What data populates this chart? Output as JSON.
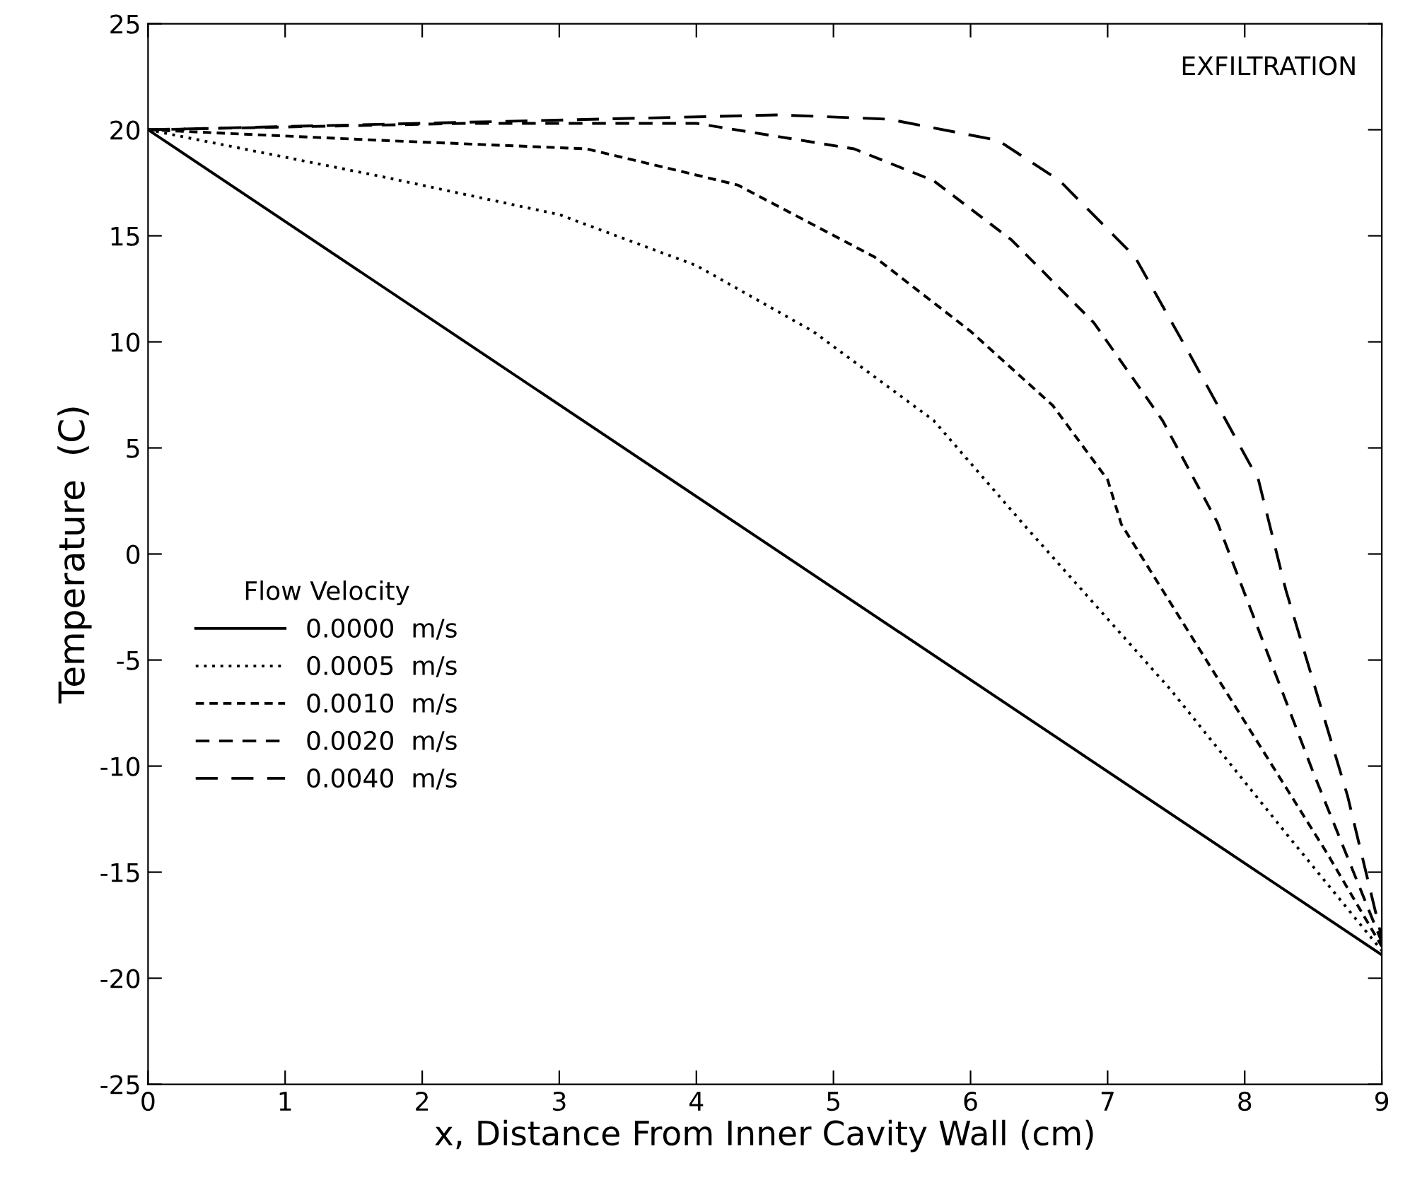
{
  "chart_data": {
    "type": "line",
    "xlabel": "x, Distance From Inner Cavity Wall (cm)",
    "ylabel": "Temperature  (C)",
    "legend_title": "Flow Velocity",
    "legend": "center left",
    "grid": false,
    "marker": "none",
    "annotations": [
      "EXFILTRATION"
    ],
    "xlim": [
      0,
      9
    ],
    "xticks": [
      0,
      1,
      2,
      3,
      4,
      5,
      6,
      7,
      8,
      9
    ],
    "ylim": [
      -25,
      25
    ],
    "yticks": [
      -25,
      -20,
      -15,
      -10,
      -5,
      0,
      5,
      10,
      15,
      20,
      25
    ],
    "series": [
      {
        "name": "0.0000  m/s",
        "color": "#000000",
        "line_style": "solid",
        "x": [
          0,
          9
        ],
        "values": [
          20,
          -18.9
        ]
      },
      {
        "name": "0.0005  m/s",
        "color": "#000000",
        "line_style": "dotted",
        "x": [
          0,
          1.7,
          3.0,
          4.0,
          4.85,
          5.73,
          6.4,
          7.46,
          8.33,
          9
        ],
        "values": [
          20,
          17.8,
          16.0,
          13.6,
          10.5,
          6.3,
          1.3,
          -6.4,
          -13.4,
          -18.7
        ]
      },
      {
        "name": "0.0010  m/s",
        "color": "#000000",
        "line_style": "dashed",
        "x": [
          0,
          1.7,
          3.2,
          4.3,
          5.3,
          6.0,
          6.6,
          7.0,
          7.1,
          8.6,
          9
        ],
        "values": [
          20,
          19.5,
          19.1,
          17.4,
          14.0,
          10.5,
          7.0,
          3.5,
          1.4,
          -14.1,
          -18.5
        ]
      },
      {
        "name": "0.0020  m/s",
        "color": "#000000",
        "line_style": "dashed",
        "x": [
          0,
          2.3,
          4.0,
          5.15,
          5.73,
          6.3,
          6.9,
          7.4,
          7.8,
          8.5,
          9
        ],
        "values": [
          20,
          20.3,
          20.3,
          19.1,
          17.6,
          14.8,
          10.9,
          6.3,
          1.5,
          -10.3,
          -18.3
        ]
      },
      {
        "name": "0.0040  m/s",
        "color": "#000000",
        "line_style": "dashed",
        "x": [
          0,
          4.6,
          5.4,
          6.2,
          6.65,
          7.2,
          7.6,
          8.1,
          8.3,
          8.75,
          9
        ],
        "values": [
          20,
          20.7,
          20.5,
          19.5,
          17.6,
          14.0,
          9.4,
          3.5,
          -1.7,
          -11.4,
          -18.1
        ]
      }
    ]
  }
}
